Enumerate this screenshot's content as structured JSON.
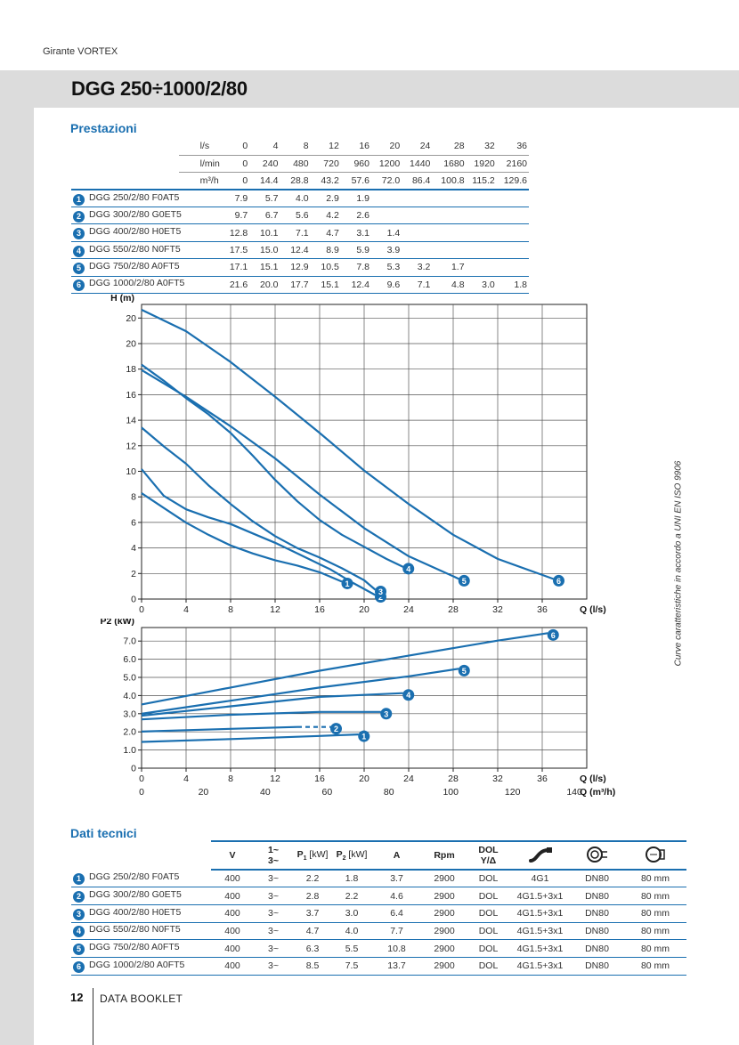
{
  "header": {
    "top_note": "Girante VORTEX",
    "title": "DGG 250÷1000/2/80"
  },
  "performance": {
    "section_title": "Prestazioni",
    "units": [
      {
        "label": "l/s",
        "values": [
          "0",
          "4",
          "8",
          "12",
          "16",
          "20",
          "24",
          "28",
          "32",
          "36"
        ]
      },
      {
        "label": "l/min",
        "values": [
          "0",
          "240",
          "480",
          "720",
          "960",
          "1200",
          "1440",
          "1680",
          "1920",
          "2160"
        ]
      },
      {
        "label": "m³/h",
        "values": [
          "0",
          "14.4",
          "28.8",
          "43.2",
          "57.6",
          "72.0",
          "86.4",
          "100.8",
          "115.2",
          "129.6"
        ]
      }
    ],
    "models": [
      {
        "num": "1",
        "name": "DGG 250/2/80 F0AT5",
        "heads": [
          "7.9",
          "5.7",
          "4.0",
          "2.9",
          "1.9",
          "",
          "",
          "",
          "",
          ""
        ]
      },
      {
        "num": "2",
        "name": "DGG 300/2/80 G0ET5",
        "heads": [
          "9.7",
          "6.7",
          "5.6",
          "4.2",
          "2.6",
          "",
          "",
          "",
          "",
          ""
        ]
      },
      {
        "num": "3",
        "name": "DGG 400/2/80 H0ET5",
        "heads": [
          "12.8",
          "10.1",
          "7.1",
          "4.7",
          "3.1",
          "1.4",
          "",
          "",
          "",
          ""
        ]
      },
      {
        "num": "4",
        "name": "DGG 550/2/80 N0FT5",
        "heads": [
          "17.5",
          "15.0",
          "12.4",
          "8.9",
          "5.9",
          "3.9",
          "",
          "",
          "",
          ""
        ]
      },
      {
        "num": "5",
        "name": "DGG 750/2/80 A0FT5",
        "heads": [
          "17.1",
          "15.1",
          "12.9",
          "10.5",
          "7.8",
          "5.3",
          "3.2",
          "1.7",
          "",
          ""
        ]
      },
      {
        "num": "6",
        "name": "DGG 1000/2/80 A0FT5",
        "heads": [
          "21.6",
          "20.0",
          "17.7",
          "15.1",
          "12.4",
          "9.6",
          "7.1",
          "4.8",
          "3.0",
          "1.8"
        ]
      }
    ]
  },
  "chart_data": [
    {
      "type": "line",
      "ylabel": "H (m)",
      "xlabel": "Q (l/s)",
      "xlim": [
        0,
        40
      ],
      "ylim": [
        0,
        22
      ],
      "x_ticks": [
        "0",
        "4",
        "8",
        "12",
        "16",
        "20",
        "24",
        "28",
        "32",
        "36"
      ],
      "y_ticks": [
        "0",
        "2",
        "4",
        "6",
        "8",
        "10",
        "12",
        "14",
        "16",
        "18",
        "20",
        "20"
      ],
      "grid": true,
      "series": [
        {
          "name": "1",
          "x": [
            0,
            2,
            4,
            6,
            8,
            10,
            12,
            14,
            16,
            18
          ],
          "y": [
            7.9,
            6.8,
            5.7,
            4.8,
            4.0,
            3.4,
            2.9,
            2.5,
            2.0,
            1.3
          ],
          "dash_x": [
            0,
            0.8
          ]
        },
        {
          "name": "2",
          "x": [
            0,
            2,
            4,
            6,
            8,
            10,
            12,
            14,
            16,
            17,
            19,
            21
          ],
          "y": [
            9.7,
            7.7,
            6.7,
            6.1,
            5.6,
            4.9,
            4.2,
            3.4,
            2.6,
            2.2,
            1.2,
            0.3
          ],
          "dash_x": [
            0,
            0.8
          ]
        },
        {
          "name": "3",
          "x": [
            0,
            2,
            4,
            6,
            8,
            10,
            12,
            14,
            16,
            18,
            20,
            21
          ],
          "y": [
            12.8,
            11.4,
            10.1,
            8.5,
            7.1,
            5.8,
            4.7,
            3.8,
            3.1,
            2.3,
            1.4,
            0.7
          ],
          "dash_x": [
            0,
            0.8
          ]
        },
        {
          "name": "4",
          "x": [
            0,
            2,
            4,
            6,
            8,
            10,
            12,
            14,
            16,
            18,
            20,
            22,
            23.5
          ],
          "y": [
            17.5,
            16.3,
            15.0,
            13.8,
            12.4,
            10.7,
            8.9,
            7.3,
            5.9,
            4.8,
            3.9,
            3.0,
            2.4
          ],
          "dash_x": [
            0,
            0.8
          ]
        },
        {
          "name": "5",
          "x": [
            0,
            4,
            8,
            12,
            16,
            20,
            24,
            28,
            28.5
          ],
          "y": [
            17.1,
            15.1,
            12.9,
            10.5,
            7.8,
            5.3,
            3.2,
            1.7,
            1.5
          ],
          "dash_x": [
            0,
            0.8
          ]
        },
        {
          "name": "6",
          "x": [
            0,
            4,
            8,
            12,
            16,
            20,
            24,
            28,
            32,
            36,
            37
          ],
          "y": [
            21.6,
            20.0,
            17.7,
            15.1,
            12.4,
            9.6,
            7.1,
            4.8,
            3.0,
            1.8,
            1.5
          ],
          "dash_x": [
            0,
            2
          ]
        }
      ]
    },
    {
      "type": "line",
      "ylabel": "P2 (kW)",
      "xlabel": "Q (l/s)",
      "xlabel2": "Q (m³/h)",
      "xlim": [
        0,
        40
      ],
      "ylim": [
        0,
        7.5
      ],
      "x_ticks": [
        "0",
        "4",
        "8",
        "12",
        "16",
        "20",
        "24",
        "28",
        "32",
        "36"
      ],
      "x2_ticks": [
        "0",
        "20",
        "40",
        "60",
        "80",
        "100",
        "120",
        "140"
      ],
      "y_ticks": [
        "0",
        "1.0",
        "2.0",
        "3.0",
        "4.0",
        "5.0",
        "6.0",
        "7.0"
      ],
      "grid": true,
      "series": [
        {
          "name": "1",
          "x": [
            0,
            8,
            16,
            19.5
          ],
          "y": [
            1.4,
            1.55,
            1.72,
            1.8
          ],
          "dash_x": [
            0,
            1.5
          ]
        },
        {
          "name": "2",
          "x": [
            0,
            8,
            14,
            17
          ],
          "y": [
            1.95,
            2.1,
            2.2,
            2.2
          ],
          "dash_x": [
            14,
            17
          ]
        },
        {
          "name": "3",
          "x": [
            0,
            8,
            16,
            21.5
          ],
          "y": [
            2.6,
            2.85,
            3.0,
            3.0
          ],
          "dash_x": [
            17,
            21.5
          ]
        },
        {
          "name": "4",
          "x": [
            0,
            8,
            16,
            23.5
          ],
          "y": [
            2.8,
            3.3,
            3.8,
            4.0
          ],
          "dash_x": [
            0,
            1.2
          ]
        },
        {
          "name": "5",
          "x": [
            0,
            8,
            16,
            24,
            28.5
          ],
          "y": [
            2.9,
            3.6,
            4.3,
            4.9,
            5.3
          ],
          "dash_x": [
            0,
            1.2
          ]
        },
        {
          "name": "6",
          "x": [
            0,
            8,
            16,
            24,
            32,
            36.5
          ],
          "y": [
            3.4,
            4.3,
            5.2,
            6.0,
            6.8,
            7.2
          ],
          "dash_x": [
            0,
            1.5
          ]
        }
      ]
    }
  ],
  "side_note": "Curve caratteristiche in accordo a UNI EN ISO 9906",
  "technical": {
    "section_title": "Dati tecnici",
    "headers": {
      "v": "V",
      "phase_top": "1~",
      "phase_bottom": "3~",
      "p1": "P",
      "p1_sub": "1",
      "p1_unit": " [kW]",
      "p2": "P",
      "p2_sub": "2",
      "p2_unit": " [kW]",
      "a": "A",
      "rpm": "Rpm",
      "dol_top": "DOL",
      "dol_bottom": "Y/Δ"
    },
    "rows": [
      {
        "num": "1",
        "name": "DGG 250/2/80 F0AT5",
        "v": "400",
        "phase": "3~",
        "p1": "2.2",
        "p2": "1.8",
        "a": "3.7",
        "rpm": "2900",
        "start": "DOL",
        "cable": "4G1",
        "outlet": "DN80",
        "passage": "80 mm"
      },
      {
        "num": "2",
        "name": "DGG 300/2/80 G0ET5",
        "v": "400",
        "phase": "3~",
        "p1": "2.8",
        "p2": "2.2",
        "a": "4.6",
        "rpm": "2900",
        "start": "DOL",
        "cable": "4G1.5+3x1",
        "outlet": "DN80",
        "passage": "80 mm"
      },
      {
        "num": "3",
        "name": "DGG 400/2/80 H0ET5",
        "v": "400",
        "phase": "3~",
        "p1": "3.7",
        "p2": "3.0",
        "a": "6.4",
        "rpm": "2900",
        "start": "DOL",
        "cable": "4G1.5+3x1",
        "outlet": "DN80",
        "passage": "80 mm"
      },
      {
        "num": "4",
        "name": "DGG 550/2/80 N0FT5",
        "v": "400",
        "phase": "3~",
        "p1": "4.7",
        "p2": "4.0",
        "a": "7.7",
        "rpm": "2900",
        "start": "DOL",
        "cable": "4G1.5+3x1",
        "outlet": "DN80",
        "passage": "80 mm"
      },
      {
        "num": "5",
        "name": "DGG 750/2/80 A0FT5",
        "v": "400",
        "phase": "3~",
        "p1": "6.3",
        "p2": "5.5",
        "a": "10.8",
        "rpm": "2900",
        "start": "DOL",
        "cable": "4G1.5+3x1",
        "outlet": "DN80",
        "passage": "80 mm"
      },
      {
        "num": "6",
        "name": "DGG 1000/2/80 A0FT5",
        "v": "400",
        "phase": "3~",
        "p1": "8.5",
        "p2": "7.5",
        "a": "13.7",
        "rpm": "2900",
        "start": "DOL",
        "cable": "4G1.5+3x1",
        "outlet": "DN80",
        "passage": "80 mm"
      }
    ]
  },
  "footer": {
    "page": "12",
    "label": "DATA BOOKLET"
  },
  "colors": {
    "accent": "#1a6fb0",
    "curve": "#1a6fb0"
  },
  "icons": [
    "cable-icon",
    "outlet-icon",
    "passage-icon"
  ]
}
